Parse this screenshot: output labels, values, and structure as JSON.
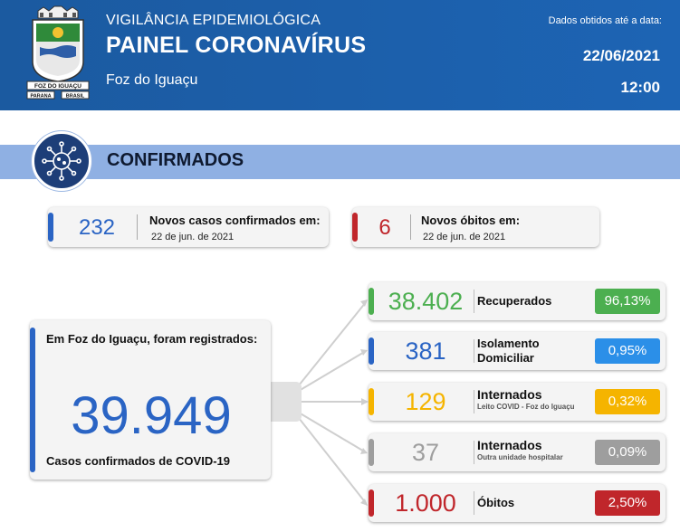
{
  "header": {
    "subtitle": "VIGILÂNCIA EPIDEMIOLÓGICA",
    "title": "PAINEL CORONAVÍRUS",
    "city": "Foz do Iguaçu",
    "date_label": "Dados obtidos até a data:",
    "date": "22/06/2021",
    "time": "12:00",
    "logo_text_top": "FOZ DO IGUAÇU",
    "logo_text_bottom_left": "PARANA",
    "logo_text_bottom_right": "BRASIL"
  },
  "section": {
    "title": "CONFIRMADOS",
    "icon": "virus-icon"
  },
  "new_cases": {
    "value": "232",
    "label": "Novos casos confirmados em:",
    "date": "22 de jun. de 2021",
    "color": "#2a64c4"
  },
  "new_deaths": {
    "value": "6",
    "label": "Novos óbitos em:",
    "date": "22 de jun. de 2021",
    "color": "#c0262b"
  },
  "main": {
    "label": "Em Foz do Iguaçu, foram registrados:",
    "value": "39.949",
    "footer": "Casos confirmados de COVID-19"
  },
  "rows": [
    {
      "value": "38.402",
      "label": "Recuperados",
      "sublabel": "",
      "percent": "96,13%",
      "color": "#4caf50"
    },
    {
      "value": "381",
      "label": "Isolamento Domiciliar",
      "sublabel": "",
      "percent": "0,95%",
      "color": "#2a64c4",
      "badge_color": "#2b8fe8"
    },
    {
      "value": "129",
      "label": "Internados",
      "sublabel": "Leito COVID - Foz do Iguaçu",
      "percent": "0,32%",
      "color": "#f5b400"
    },
    {
      "value": "37",
      "label": "Internados",
      "sublabel": "Outra unidade hospitalar",
      "percent": "0,09%",
      "color": "#9e9e9e"
    },
    {
      "value": "1.000",
      "label": "Óbitos",
      "sublabel": "",
      "percent": "2,50%",
      "color": "#c0262b"
    }
  ]
}
